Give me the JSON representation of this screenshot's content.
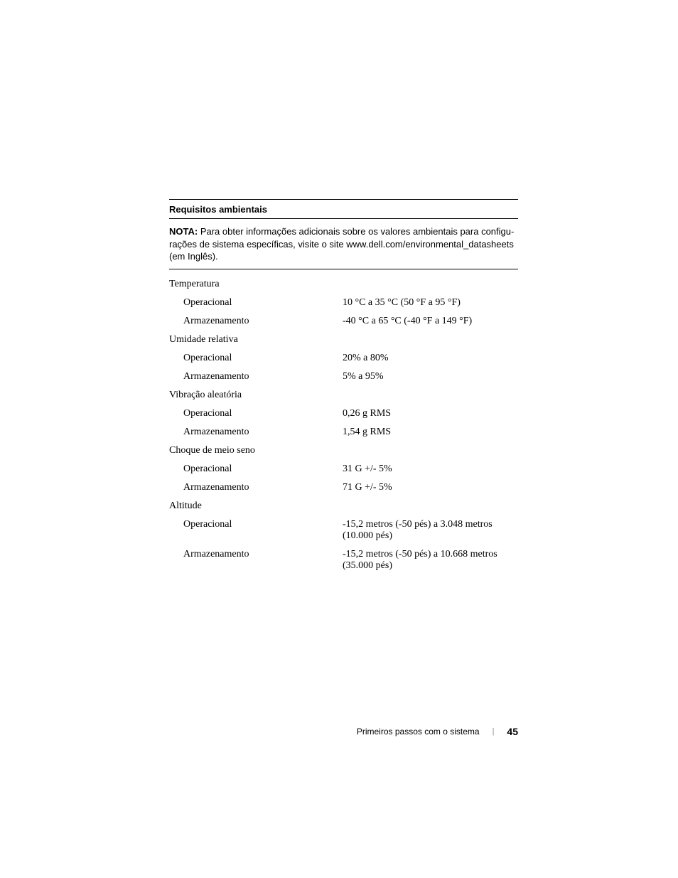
{
  "header": {
    "title": "Requisitos ambientais"
  },
  "nota": {
    "label": "NOTA:",
    "text_before": " Para obter informações adicionais sobre os valores ambientais para configu-rações de sistema específicas, visite o site ",
    "url": "www.dell.com/environmental_datasheets",
    "text_after": " (em Inglês)."
  },
  "sections": [
    {
      "heading": "Temperatura",
      "rows": [
        {
          "label": "Operacional",
          "value": "10 °C a 35 °C (50 °F a 95 °F)"
        },
        {
          "label": "Armazenamento",
          "value": "-40 °C a 65 °C (-40 °F a 149 °F)"
        }
      ]
    },
    {
      "heading": "Umidade relativa",
      "rows": [
        {
          "label": "Operacional",
          "value": "20% a 80%"
        },
        {
          "label": "Armazenamento",
          "value": "5% a 95%"
        }
      ]
    },
    {
      "heading": "Vibração aleatória",
      "rows": [
        {
          "label": "Operacional",
          "value": "0,26 g RMS"
        },
        {
          "label": "Armazenamento",
          "value": "1,54 g RMS"
        }
      ]
    },
    {
      "heading": "Choque de meio seno",
      "rows": [
        {
          "label": "Operacional",
          "value": "31 G +/- 5%"
        },
        {
          "label": "Armazenamento",
          "value": "71 G +/- 5%"
        }
      ]
    },
    {
      "heading": "Altitude",
      "rows": [
        {
          "label": "Operacional",
          "value": "-15,2 metros (-50 pés) a 3.048 metros (10.000 pés)"
        },
        {
          "label": "Armazenamento",
          "value": "-15,2 metros (-50 pés) a 10.668 metros (35.000 pés)"
        }
      ]
    }
  ],
  "footer": {
    "title": "Primeiros passos com o sistema",
    "divider": "|",
    "page": "45"
  }
}
